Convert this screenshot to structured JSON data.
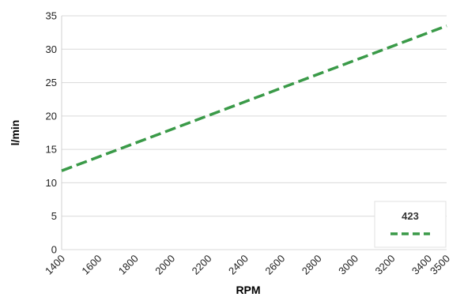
{
  "chart_data": {
    "type": "line",
    "title": "",
    "xlabel": "RPM",
    "ylabel": "l/min",
    "xlim": [
      1400,
      3500
    ],
    "ylim": [
      0,
      35
    ],
    "x_ticks": [
      "1400",
      "1600",
      "1800",
      "2000",
      "2200",
      "2400",
      "2600",
      "2800",
      "3000",
      "3200",
      "3400",
      "3500"
    ],
    "y_ticks": [
      "0",
      "5",
      "10",
      "15",
      "20",
      "25",
      "30",
      "35"
    ],
    "grid": "horizontal",
    "legend_position": "bottom-right",
    "series": [
      {
        "name": "423",
        "color": "#3a9a48",
        "line_style": "dashed",
        "x": [
          1400,
          3500
        ],
        "y": [
          11.8,
          33.5
        ]
      }
    ]
  }
}
